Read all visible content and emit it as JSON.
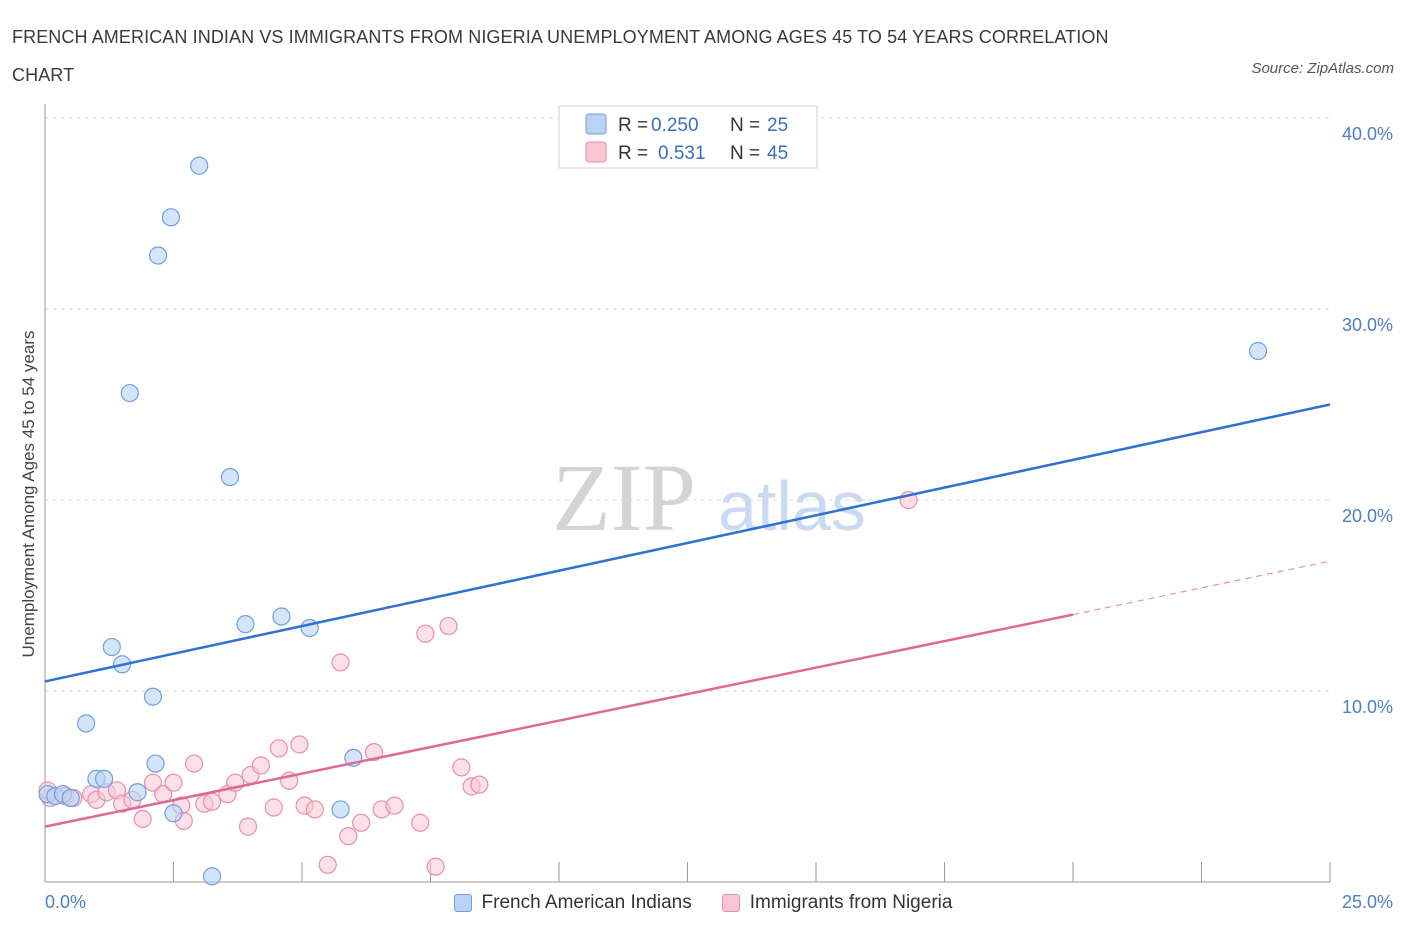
{
  "title": "FRENCH AMERICAN INDIAN VS IMMIGRANTS FROM NIGERIA UNEMPLOYMENT AMONG AGES 45 TO 54 YEARS CORRELATION CHART",
  "source": "Source: ZipAtlas.com",
  "watermark": {
    "zip": "ZIP",
    "atlas": "atlas"
  },
  "colors": {
    "blue_fill": "#b9d3f5",
    "blue_stroke": "#6f9fe0",
    "blue_line": "#2f72d0",
    "pink_fill": "#f9c6d6",
    "pink_stroke": "#ea8eab",
    "pink_line": "#e06892",
    "grid": "#d9d9d9",
    "tick_text": "#4a7fc9"
  },
  "legend": {
    "series": [
      {
        "r_label": "R =",
        "r_value": "0.250",
        "n_label": "N =",
        "n_value": "25"
      },
      {
        "r_label": "R =",
        "r_value": "0.531",
        "n_label": "N =",
        "n_value": "45"
      }
    ]
  },
  "chart_data": {
    "type": "scatter",
    "title": "FRENCH AMERICAN INDIAN VS IMMIGRANTS FROM NIGERIA UNEMPLOYMENT AMONG AGES 45 TO 54 YEARS CORRELATION CHART",
    "xlabel": "",
    "ylabel": "Unemployment Among Ages 45 to 54 years",
    "xlim": [
      0,
      25
    ],
    "ylim": [
      0,
      40
    ],
    "x_tick_labels": [
      "0.0%",
      "25.0%"
    ],
    "y_ticks": [
      10,
      20,
      30,
      40
    ],
    "y_tick_labels": [
      "10.0%",
      "20.0%",
      "30.0%",
      "40.0%"
    ],
    "grid": true,
    "legend_position": "top-center",
    "series": [
      {
        "name": "French American Indians",
        "color": "#6f9fe0",
        "R": 0.25,
        "N": 25,
        "points": [
          [
            0.05,
            4.6
          ],
          [
            0.2,
            4.5
          ],
          [
            0.35,
            4.6
          ],
          [
            0.5,
            4.4
          ],
          [
            0.8,
            8.3
          ],
          [
            1.0,
            5.4
          ],
          [
            1.15,
            5.4
          ],
          [
            1.3,
            12.3
          ],
          [
            1.5,
            11.4
          ],
          [
            1.65,
            25.6
          ],
          [
            1.8,
            4.7
          ],
          [
            2.15,
            6.2
          ],
          [
            2.1,
            9.7
          ],
          [
            2.2,
            32.8
          ],
          [
            2.45,
            34.8
          ],
          [
            2.5,
            3.6
          ],
          [
            3.0,
            37.5
          ],
          [
            3.25,
            0.3
          ],
          [
            3.6,
            21.2
          ],
          [
            3.9,
            13.5
          ],
          [
            4.6,
            13.9
          ],
          [
            5.15,
            13.3
          ],
          [
            5.75,
            3.8
          ],
          [
            6.0,
            6.5
          ],
          [
            23.6,
            27.8
          ]
        ],
        "trend": {
          "x": [
            0,
            25
          ],
          "y": [
            10.5,
            25.0
          ]
        }
      },
      {
        "name": "Immigrants from Nigeria",
        "color": "#ea8eab",
        "R": 0.531,
        "N": 45,
        "points": [
          [
            0.1,
            4.4
          ],
          [
            0.4,
            4.5
          ],
          [
            0.55,
            4.4
          ],
          [
            0.9,
            4.6
          ],
          [
            1.0,
            4.3
          ],
          [
            1.2,
            4.7
          ],
          [
            1.4,
            4.8
          ],
          [
            1.5,
            4.1
          ],
          [
            1.7,
            4.3
          ],
          [
            1.9,
            3.3
          ],
          [
            2.1,
            5.2
          ],
          [
            2.3,
            4.6
          ],
          [
            2.5,
            5.2
          ],
          [
            2.65,
            4.0
          ],
          [
            2.7,
            3.2
          ],
          [
            2.9,
            6.2
          ],
          [
            3.1,
            4.1
          ],
          [
            3.25,
            4.2
          ],
          [
            3.55,
            4.6
          ],
          [
            3.7,
            5.2
          ],
          [
            3.95,
            2.9
          ],
          [
            4.0,
            5.6
          ],
          [
            4.2,
            6.1
          ],
          [
            4.45,
            3.9
          ],
          [
            4.55,
            7.0
          ],
          [
            4.75,
            5.3
          ],
          [
            4.95,
            7.2
          ],
          [
            5.05,
            4.0
          ],
          [
            5.25,
            3.8
          ],
          [
            5.5,
            0.9
          ],
          [
            5.75,
            11.5
          ],
          [
            5.9,
            2.4
          ],
          [
            6.15,
            3.1
          ],
          [
            6.4,
            6.8
          ],
          [
            6.55,
            3.8
          ],
          [
            6.8,
            4.0
          ],
          [
            7.3,
            3.1
          ],
          [
            7.4,
            13.0
          ],
          [
            7.6,
            0.8
          ],
          [
            7.85,
            13.4
          ],
          [
            8.1,
            6.0
          ],
          [
            8.3,
            5.0
          ],
          [
            8.45,
            5.1
          ],
          [
            16.8,
            20.0
          ],
          [
            0.05,
            4.8
          ]
        ],
        "trend": {
          "x": [
            0,
            20
          ],
          "y": [
            2.9,
            14.0
          ]
        },
        "trend_dashed": {
          "x": [
            20,
            25
          ],
          "y": [
            14.0,
            16.8
          ]
        }
      }
    ]
  }
}
